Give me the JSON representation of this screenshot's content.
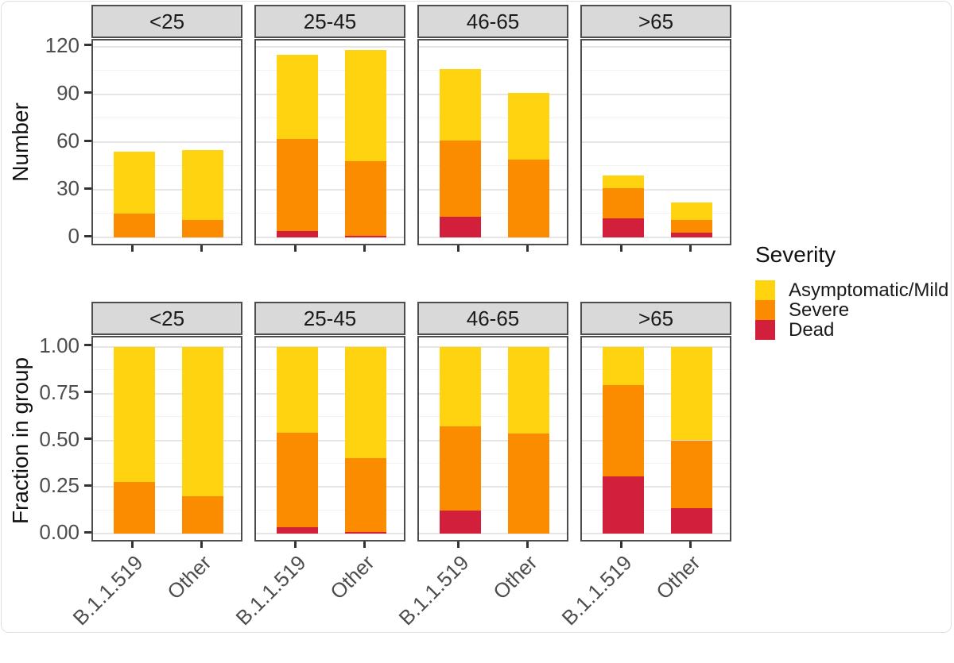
{
  "figure": {
    "background": "#ffffff",
    "card_border": "#e0e0e0"
  },
  "colors": {
    "asymptomatic_mild": "#FFD30F",
    "severe": "#FB8C00",
    "dead": "#D2203C",
    "panel_border": "#4d4d4d",
    "strip_fill": "#d9d9d9",
    "grid_major": "#e6e6e6",
    "grid_minor": "#f2f2f2",
    "axis_text": "#4d4d4d",
    "title_text": "#111111"
  },
  "legend": {
    "title": "Severity",
    "position": "right",
    "items": [
      {
        "label": "Asymptomatic/Mild",
        "color": "#FFD30F"
      },
      {
        "label": "Severe",
        "color": "#FB8C00"
      },
      {
        "label": "Dead",
        "color": "#D2203C"
      }
    ]
  },
  "chart_data": [
    {
      "type": "bar",
      "stacked": true,
      "title": "",
      "ylabel": "Number",
      "xlabel": "",
      "facets": [
        "<25",
        "25-45",
        "46-65",
        ">65"
      ],
      "categories": [
        "B.1.1.519",
        "Other"
      ],
      "stack_order": [
        "Dead",
        "Severe",
        "Asymptomatic/Mild"
      ],
      "series_colors": [
        "#D2203C",
        "#FB8C00",
        "#FFD30F"
      ],
      "values_order": "facets x categories x stack_order",
      "values": [
        [
          [
            0,
            15,
            39
          ],
          [
            0,
            11,
            44
          ]
        ],
        [
          [
            4,
            58,
            53
          ],
          [
            1,
            47,
            70
          ]
        ],
        [
          [
            13,
            48,
            45
          ],
          [
            0,
            49,
            42
          ]
        ],
        [
          [
            12,
            19,
            8
          ],
          [
            3,
            8,
            11
          ]
        ]
      ],
      "y_axis": {
        "ticks": [
          0,
          30,
          60,
          90,
          120
        ],
        "tick_labels": [
          "0",
          "30",
          "60",
          "90",
          "120"
        ],
        "minor_ticks": [
          15,
          45,
          75,
          105
        ],
        "data_max": 118,
        "expand_mult": 0.05
      },
      "grid": true,
      "show_x_labels": false
    },
    {
      "type": "bar",
      "stacked": true,
      "title": "",
      "ylabel": "Fraction in group",
      "xlabel": "",
      "facets": [
        "<25",
        "25-45",
        "46-65",
        ">65"
      ],
      "categories": [
        "B.1.1.519",
        "Other"
      ],
      "stack_order": [
        "Dead",
        "Severe",
        "Asymptomatic/Mild"
      ],
      "series_colors": [
        "#D2203C",
        "#FB8C00",
        "#FFD30F"
      ],
      "values_order": "facets x categories x stack_order",
      "values": [
        [
          [
            0,
            0.278,
            0.722
          ],
          [
            0,
            0.2,
            0.8
          ]
        ],
        [
          [
            0.035,
            0.504,
            0.461
          ],
          [
            0.008,
            0.398,
            0.594
          ]
        ],
        [
          [
            0.123,
            0.453,
            0.424
          ],
          [
            0,
            0.538,
            0.462
          ]
        ],
        [
          [
            0.308,
            0.487,
            0.205
          ],
          [
            0.136,
            0.364,
            0.5
          ]
        ]
      ],
      "y_axis": {
        "ticks": [
          0,
          0.25,
          0.5,
          0.75,
          1
        ],
        "tick_labels": [
          "0.00",
          "0.25",
          "0.50",
          "0.75",
          "1.00"
        ],
        "minor_ticks": [
          0.125,
          0.375,
          0.625,
          0.875
        ],
        "data_max": 1,
        "expand_mult": 0.05
      },
      "grid": true,
      "show_x_labels": true
    }
  ]
}
